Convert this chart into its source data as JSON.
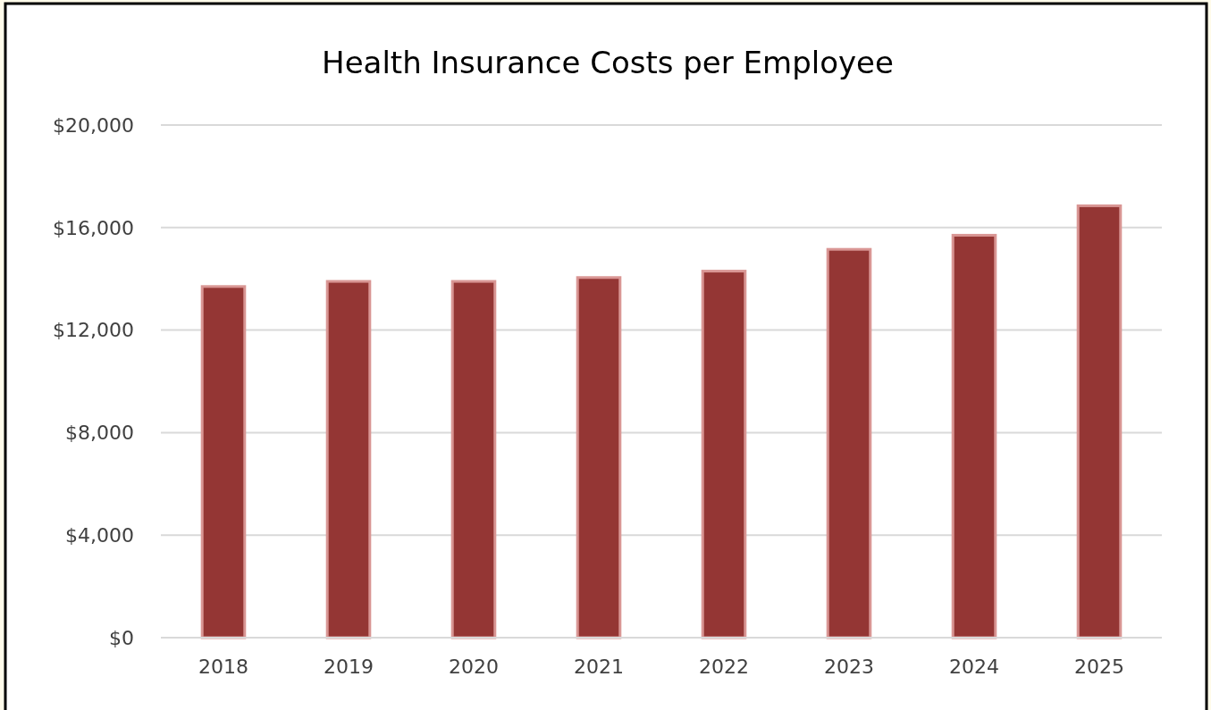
{
  "chart_data": {
    "type": "bar",
    "title": "Health Insurance  Costs per Employee",
    "categories": [
      "2018",
      "2019",
      "2020",
      "2021",
      "2022",
      "2023",
      "2024",
      "2025"
    ],
    "values": [
      13700,
      13900,
      13900,
      14050,
      14300,
      15150,
      15700,
      16850
    ],
    "color": "#943634",
    "ylim": [
      0,
      20000
    ],
    "yticks": [
      {
        "value": 0,
        "label": "$0"
      },
      {
        "value": 4000,
        "label": "$4,000"
      },
      {
        "value": 8000,
        "label": "$8,000"
      },
      {
        "value": 12000,
        "label": "$12,000"
      },
      {
        "value": 16000,
        "label": "$16,000"
      },
      {
        "value": 20000,
        "label": "$20,000"
      }
    ],
    "grid": "y"
  }
}
